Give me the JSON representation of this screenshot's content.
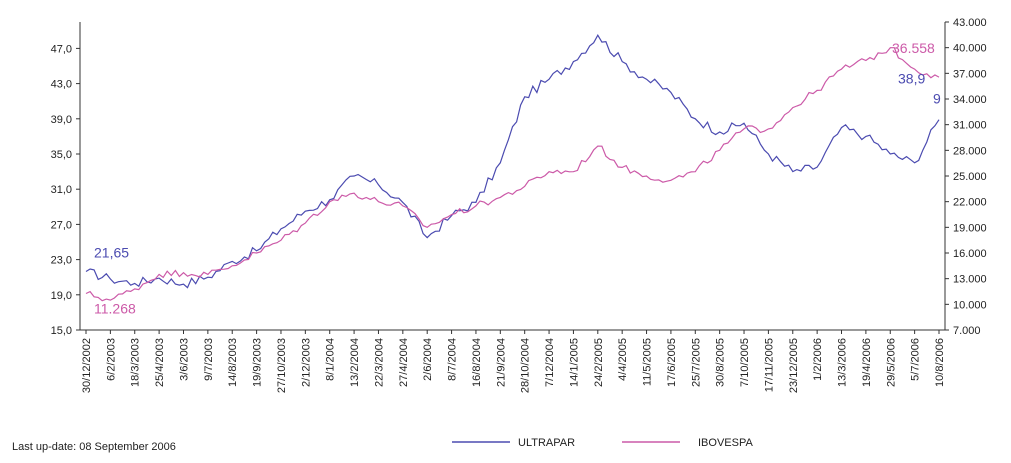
{
  "footer": {
    "last_update": "Last up-date: 08 September 2006"
  },
  "chart_data": {
    "type": "line",
    "title": "",
    "x_tick_labels": [
      "30/12/2002",
      "6/2/2003",
      "18/3/2003",
      "25/4/2003",
      "3/6/2003",
      "9/7/2003",
      "14/8/2003",
      "19/9/2003",
      "27/10/2003",
      "2/12/2003",
      "8/1/2004",
      "13/2/2004",
      "22/3/2004",
      "27/4/2004",
      "2/6/2004",
      "8/7/2004",
      "16/8/2004",
      "21/9/2004",
      "28/10/2004",
      "7/12/2004",
      "14/1/2005",
      "24/2/2005",
      "4/4/2005",
      "11/5/2005",
      "17/6/2005",
      "25/7/2005",
      "30/8/2005",
      "7/10/2005",
      "17/11/2005",
      "23/12/2005",
      "1/2/2006",
      "13/3/2006",
      "19/4/2006",
      "29/5/2006",
      "5/7/2006",
      "10/8/2006"
    ],
    "y_left": {
      "ticks": [
        "15,0",
        "19,0",
        "23,0",
        "27,0",
        "31,0",
        "35,0",
        "39,0",
        "43,0",
        "47,0"
      ],
      "min": 15,
      "max": 50
    },
    "y_right": {
      "ticks": [
        "7.000",
        "10.000",
        "13.000",
        "16.000",
        "19.000",
        "22.000",
        "25.000",
        "28.000",
        "31.000",
        "34.000",
        "37.000",
        "40.000",
        "43.000"
      ],
      "min": 7000,
      "max": 43000
    },
    "series": [
      {
        "name": "ULTRAPAR",
        "axis": "left",
        "color": "#4b4bb0",
        "values": [
          21.65,
          20.8,
          20.3,
          20.9,
          20.2,
          21.0,
          22.8,
          24.0,
          26.5,
          28.5,
          29.8,
          32.5,
          31.5,
          29.5,
          25.5,
          28.0,
          29.5,
          34.0,
          41.5,
          43.5,
          45.5,
          48.5,
          45.5,
          43.5,
          42.0,
          39.0,
          37.5,
          38.5,
          35.0,
          33.0,
          33.5,
          38.0,
          37.0,
          35.0,
          34.0,
          38.9
        ],
        "start_label": "21,65",
        "end_label": "38,9",
        "extra_label": "9"
      },
      {
        "name": "IBOVESPA",
        "axis": "right",
        "color": "#cc5aa8",
        "values": [
          11268,
          10500,
          11800,
          13500,
          13700,
          13500,
          14500,
          16000,
          17500,
          19500,
          22000,
          23000,
          22000,
          21500,
          19000,
          20500,
          21500,
          22500,
          23800,
          25500,
          25500,
          28500,
          26000,
          25000,
          24500,
          25500,
          28000,
          30500,
          30500,
          33000,
          35000,
          37500,
          38500,
          40000,
          37500,
          36558
        ],
        "start_label": "11.268",
        "end_label": "36.558"
      }
    ],
    "legend": {
      "placement": "bottom"
    }
  }
}
